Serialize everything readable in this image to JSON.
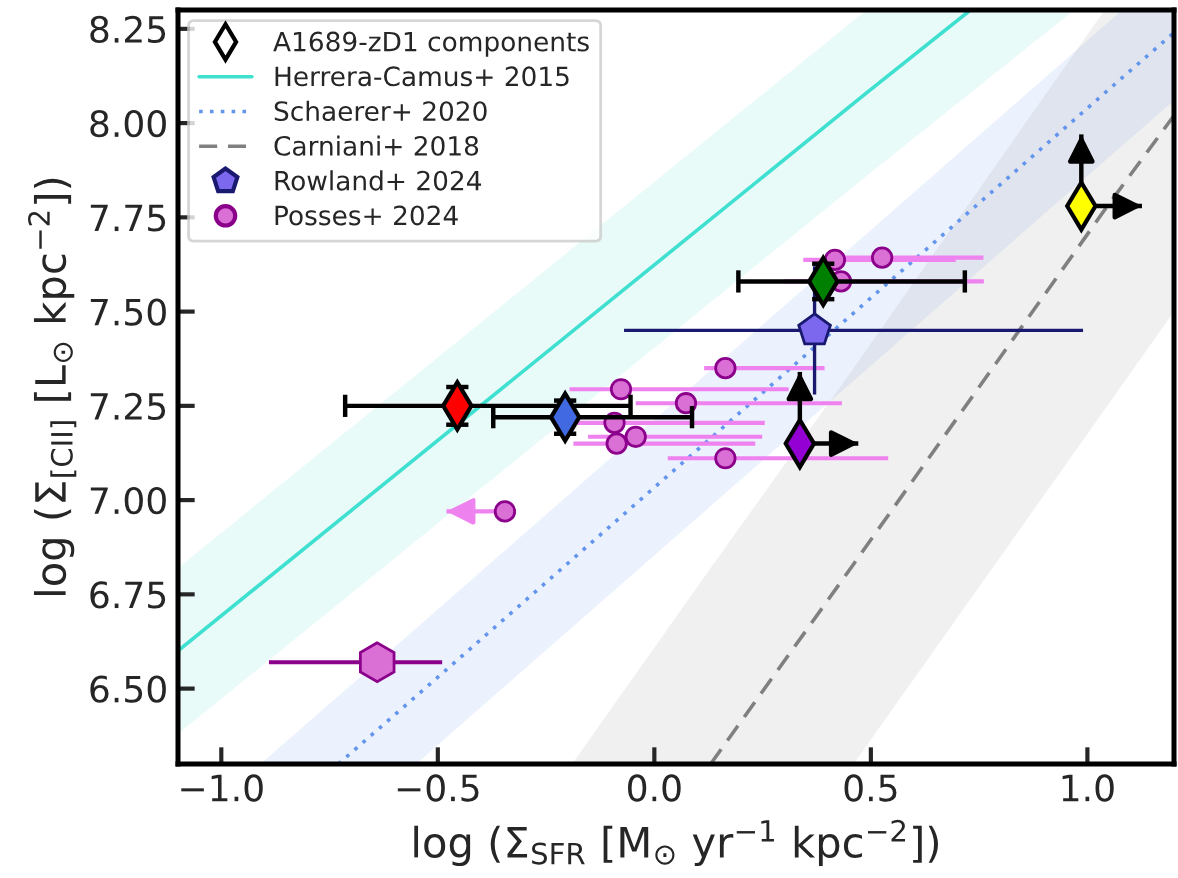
{
  "chart_data": {
    "type": "scatter",
    "xlabel": "log (Σ$_{SFR}$ [M$_{⊙}$ yr$^{−1}$ kpc$^{−2}$])",
    "ylabel": "log (Σ$_{[CII]}$ [L$_{⊙}$ kpc$^{−2}$])",
    "xlim": [
      -1.1,
      1.2
    ],
    "ylim": [
      6.3,
      8.3
    ],
    "xticks": [
      {
        "value": -1.0,
        "label": "−1.0"
      },
      {
        "value": -0.5,
        "label": "−0.5"
      },
      {
        "value": 0.0,
        "label": "0.0"
      },
      {
        "value": 0.5,
        "label": "0.5"
      },
      {
        "value": 1.0,
        "label": "1.0"
      }
    ],
    "yticks": [
      {
        "value": 6.5,
        "label": "6.50"
      },
      {
        "value": 6.75,
        "label": "6.75"
      },
      {
        "value": 7.0,
        "label": "7.00"
      },
      {
        "value": 7.25,
        "label": "7.25"
      },
      {
        "value": 7.5,
        "label": "7.50"
      },
      {
        "value": 7.75,
        "label": "7.75"
      },
      {
        "value": 8.0,
        "label": "8.00"
      },
      {
        "value": 8.25,
        "label": "8.25"
      }
    ],
    "grid": false,
    "legend": "top left",
    "series": [
      {
        "name": "A1689-zD1 components",
        "marker": "diamond",
        "x": [
          -0.455,
          -0.206,
          0.39,
          0.986,
          0.336
        ],
        "values": [
          7.25,
          7.22,
          7.58,
          7.78,
          7.15
        ],
        "colors": [
          "#ff0000",
          "#4169e1",
          "#008000",
          "#ffff00",
          "#9400d3"
        ],
        "color": "#ffffff",
        "xerrors": [
          [
            -0.714,
            -0.055
          ],
          [
            -0.372,
            0.087
          ],
          [
            0.194,
            0.717
          ],
          [
            0.986,
            1.126
          ],
          [
            0.336,
            0.471
          ]
        ],
        "errors": [
          [
            7.2,
            7.3
          ],
          [
            7.176,
            7.264
          ],
          [
            7.533,
            7.627
          ],
          [
            7.78,
            7.97
          ],
          [
            7.15,
            7.34
          ]
        ]
      },
      {
        "name": "Herrera-Camus+ 2015",
        "type": "line",
        "line_style": "solid",
        "color": "#40e0d0",
        "x": [
          -1.1,
          0.49,
          0.73,
          0.97
        ],
        "values": [
          6.6,
          8.08,
          8.3,
          null
        ],
        "lower": [
          6.38,
          7.86,
          8.08,
          8.3
        ],
        "upper": [
          6.82,
          8.3,
          8.3,
          8.3
        ]
      },
      {
        "name": "Schaerer+ 2020",
        "type": "line",
        "line_style": "dotted",
        "color": "#6495ed",
        "x": [
          -0.91,
          -0.73,
          -0.55,
          1.08,
          1.2
        ],
        "values": [
          null,
          6.3,
          6.48,
          8.12,
          8.24
        ],
        "lower": [
          6.3,
          6.3,
          6.3,
          7.94,
          8.06
        ],
        "upper": [
          6.3,
          6.48,
          6.66,
          8.3,
          8.3
        ]
      },
      {
        "name": "Carniani+ 2018",
        "type": "line",
        "line_style": "dashed",
        "color": "#808080",
        "x": [
          -0.19,
          0.13,
          0.46,
          1.04,
          1.2
        ],
        "values": [
          null,
          6.3,
          6.83,
          7.77,
          8.02
        ],
        "lower": [
          6.3,
          6.3,
          6.3,
          7.24,
          7.5
        ],
        "upper": [
          6.3,
          6.82,
          7.35,
          8.3,
          8.3
        ]
      },
      {
        "name": "Rowland+ 2024",
        "color": "#7b68ee",
        "x": [
          0.37
        ],
        "values": [
          7.45
        ],
        "xerrors": [
          [
            -0.07,
            0.99
          ]
        ],
        "errors": [
          [
            7.28,
            7.62
          ]
        ]
      },
      {
        "name": "Posses+ 2024",
        "marker": "circle",
        "color": "#da70d6",
        "x": [
          0.417,
          0.526,
          0.431,
          0.164,
          -0.077,
          0.073,
          -0.092,
          -0.043,
          -0.087,
          0.164,
          -0.345
        ],
        "values": [
          7.637,
          7.643,
          7.58,
          7.35,
          7.294,
          7.257,
          7.205,
          7.168,
          7.15,
          7.111,
          6.97
        ],
        "xerrors": [
          [
            0.344,
            0.696
          ],
          [
            0.426,
            0.76
          ],
          [
            0.301,
            0.761
          ],
          [
            0.115,
            0.393
          ],
          [
            -0.196,
            0.31
          ],
          [
            -0.043,
            0.433
          ],
          [
            -0.182,
            0.255
          ],
          [
            -0.153,
            0.249
          ],
          [
            -0.187,
            0.233
          ],
          [
            0.031,
            0.54
          ],
          [
            -0.48,
            -0.345
          ]
        ]
      },
      {
        "color": "#da70d6",
        "x": [
          -0.64
        ],
        "values": [
          6.57
        ],
        "xerrors": [
          [
            -0.89,
            -0.49
          ]
        ]
      }
    ]
  }
}
